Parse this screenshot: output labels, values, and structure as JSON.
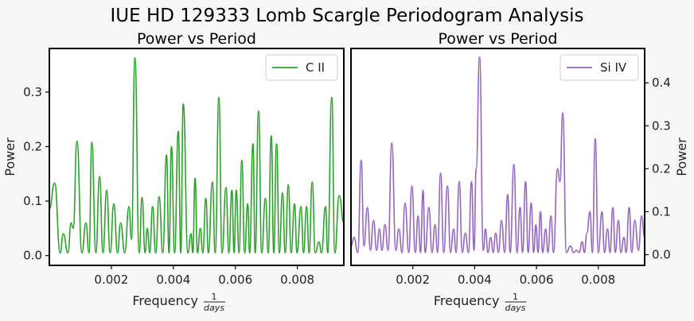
{
  "figure": {
    "title": "IUE HD 129333 Lomb Scargle Periodogram Analysis"
  },
  "chart_data": [
    {
      "type": "line",
      "title": "Power vs Period",
      "xlabel": "Frequency",
      "xlabel_fraction": {
        "numerator": "1",
        "denominator": "days"
      },
      "ylabel": "Power",
      "xlim": [
        0.0,
        0.0095
      ],
      "ylim": [
        -0.018,
        0.38
      ],
      "x_ticks": [
        "0.002",
        "0.004",
        "0.006",
        "0.008"
      ],
      "y_ticks": [
        "0.0",
        "0.1",
        "0.2",
        "0.3"
      ],
      "yaxis_side": "left",
      "legend_position": "upper right",
      "series": [
        {
          "name": "C II",
          "color": "#2ca02c",
          "peaks": [
            [
              0.0,
              0.085
            ],
            [
              0.00017,
              0.133
            ],
            [
              0.00035,
              0.005
            ],
            [
              0.00045,
              0.04
            ],
            [
              0.0006,
              0.005
            ],
            [
              0.0007,
              0.06
            ],
            [
              0.00077,
              0.05
            ],
            [
              0.00089,
              0.21
            ],
            [
              0.00105,
              0.005
            ],
            [
              0.00118,
              0.06
            ],
            [
              0.00128,
              0.005
            ],
            [
              0.00137,
              0.208
            ],
            [
              0.0015,
              0.005
            ],
            [
              0.00162,
              0.145
            ],
            [
              0.00173,
              0.005
            ],
            [
              0.00185,
              0.12
            ],
            [
              0.00196,
              0.005
            ],
            [
              0.00208,
              0.095
            ],
            [
              0.0022,
              0.005
            ],
            [
              0.0023,
              0.06
            ],
            [
              0.00243,
              0.005
            ],
            [
              0.00257,
              0.09
            ],
            [
              0.00265,
              0.03
            ],
            [
              0.00276,
              0.363
            ],
            [
              0.0029,
              0.005
            ],
            [
              0.00299,
              0.107
            ],
            [
              0.00309,
              0.005
            ],
            [
              0.00316,
              0.05
            ],
            [
              0.00324,
              0.005
            ],
            [
              0.00333,
              0.09
            ],
            [
              0.00343,
              0.005
            ],
            [
              0.00354,
              0.108
            ],
            [
              0.00366,
              0.005
            ],
            [
              0.00378,
              0.185
            ],
            [
              0.00386,
              0.005
            ],
            [
              0.00394,
              0.2
            ],
            [
              0.00404,
              0.005
            ],
            [
              0.00416,
              0.228
            ],
            [
              0.00424,
              0.005
            ],
            [
              0.00432,
              0.278
            ],
            [
              0.00447,
              0.005
            ],
            [
              0.00457,
              0.04
            ],
            [
              0.00463,
              0.005
            ],
            [
              0.0047,
              0.142
            ],
            [
              0.00478,
              0.005
            ],
            [
              0.00487,
              0.05
            ],
            [
              0.00495,
              0.005
            ],
            [
              0.00505,
              0.105
            ],
            [
              0.00513,
              0.005
            ],
            [
              0.00526,
              0.135
            ],
            [
              0.00535,
              0.005
            ],
            [
              0.00547,
              0.29
            ],
            [
              0.00557,
              0.005
            ],
            [
              0.0057,
              0.125
            ],
            [
              0.00579,
              0.005
            ],
            [
              0.00589,
              0.12
            ],
            [
              0.00596,
              0.005
            ],
            [
              0.00603,
              0.12
            ],
            [
              0.00612,
              0.005
            ],
            [
              0.00621,
              0.175
            ],
            [
              0.0063,
              0.005
            ],
            [
              0.0064,
              0.095
            ],
            [
              0.00646,
              0.005
            ],
            [
              0.00657,
              0.205
            ],
            [
              0.00664,
              0.005
            ],
            [
              0.00675,
              0.265
            ],
            [
              0.00685,
              0.005
            ],
            [
              0.00697,
              0.105
            ],
            [
              0.00706,
              0.005
            ],
            [
              0.00716,
              0.22
            ],
            [
              0.00724,
              0.005
            ],
            [
              0.00733,
              0.205
            ],
            [
              0.00742,
              0.005
            ],
            [
              0.00752,
              0.115
            ],
            [
              0.00761,
              0.005
            ],
            [
              0.00771,
              0.13
            ],
            [
              0.0078,
              0.005
            ],
            [
              0.00791,
              0.095
            ],
            [
              0.00799,
              0.005
            ],
            [
              0.00812,
              0.09
            ],
            [
              0.0082,
              0.005
            ],
            [
              0.0083,
              0.09
            ],
            [
              0.00838,
              0.005
            ],
            [
              0.00848,
              0.135
            ],
            [
              0.00858,
              0.005
            ],
            [
              0.0087,
              0.025
            ],
            [
              0.00878,
              0.005
            ],
            [
              0.00891,
              0.09
            ],
            [
              0.00898,
              0.005
            ],
            [
              0.00911,
              0.29
            ],
            [
              0.00921,
              0.005
            ],
            [
              0.00935,
              0.11
            ],
            [
              0.0095,
              0.06
            ]
          ]
        }
      ]
    },
    {
      "type": "line",
      "title": "Power vs Period",
      "xlabel": "Frequency",
      "xlabel_fraction": {
        "numerator": "1",
        "denominator": "days"
      },
      "ylabel": "Power",
      "xlim": [
        0.0,
        0.0095
      ],
      "ylim": [
        -0.025,
        0.48
      ],
      "x_ticks": [
        "0.002",
        "0.004",
        "0.006",
        "0.008"
      ],
      "y_ticks": [
        "0.0",
        "0.1",
        "0.2",
        "0.3",
        "0.4"
      ],
      "yaxis_side": "right",
      "legend_position": "upper right",
      "series": [
        {
          "name": "Si IV",
          "color": "#9467bd",
          "peaks": [
            [
              0.0,
              0.02
            ],
            [
              0.0001,
              0.04
            ],
            [
              0.00022,
              0.005
            ],
            [
              0.00033,
              0.22
            ],
            [
              0.00042,
              0.02
            ],
            [
              0.00053,
              0.11
            ],
            [
              0.00063,
              0.01
            ],
            [
              0.00073,
              0.08
            ],
            [
              0.00083,
              0.01
            ],
            [
              0.00092,
              0.06
            ],
            [
              0.001,
              0.01
            ],
            [
              0.0011,
              0.07
            ],
            [
              0.0012,
              0.01
            ],
            [
              0.00132,
              0.26
            ],
            [
              0.00145,
              0.01
            ],
            [
              0.00155,
              0.06
            ],
            [
              0.00165,
              0.005
            ],
            [
              0.00175,
              0.12
            ],
            [
              0.00187,
              0.005
            ],
            [
              0.00197,
              0.16
            ],
            [
              0.00208,
              0.005
            ],
            [
              0.00217,
              0.09
            ],
            [
              0.00225,
              0.005
            ],
            [
              0.00233,
              0.15
            ],
            [
              0.0024,
              0.005
            ],
            [
              0.00252,
              0.11
            ],
            [
              0.00262,
              0.005
            ],
            [
              0.00272,
              0.07
            ],
            [
              0.0028,
              0.005
            ],
            [
              0.0029,
              0.19
            ],
            [
              0.003,
              0.005
            ],
            [
              0.00312,
              0.16
            ],
            [
              0.00322,
              0.005
            ],
            [
              0.00332,
              0.06
            ],
            [
              0.0034,
              0.005
            ],
            [
              0.0035,
              0.17
            ],
            [
              0.0036,
              0.005
            ],
            [
              0.0037,
              0.05
            ],
            [
              0.0038,
              0.005
            ],
            [
              0.0039,
              0.17
            ],
            [
              0.00398,
              0.01
            ],
            [
              0.00405,
              0.2
            ],
            [
              0.00416,
              0.46
            ],
            [
              0.00428,
              0.01
            ],
            [
              0.00435,
              0.06
            ],
            [
              0.00443,
              0.005
            ],
            [
              0.00452,
              0.04
            ],
            [
              0.0046,
              0.005
            ],
            [
              0.00468,
              0.05
            ],
            [
              0.00477,
              0.005
            ],
            [
              0.00487,
              0.08
            ],
            [
              0.00497,
              0.005
            ],
            [
              0.00507,
              0.14
            ],
            [
              0.00515,
              0.005
            ],
            [
              0.00527,
              0.21
            ],
            [
              0.00537,
              0.005
            ],
            [
              0.00547,
              0.11
            ],
            [
              0.00555,
              0.005
            ],
            [
              0.00565,
              0.17
            ],
            [
              0.00573,
              0.005
            ],
            [
              0.00583,
              0.12
            ],
            [
              0.00591,
              0.005
            ],
            [
              0.00598,
              0.07
            ],
            [
              0.00605,
              0.005
            ],
            [
              0.00613,
              0.1
            ],
            [
              0.0062,
              0.005
            ],
            [
              0.0063,
              0.06
            ],
            [
              0.00637,
              0.005
            ],
            [
              0.00647,
              0.09
            ],
            [
              0.00655,
              0.005
            ],
            [
              0.00668,
              0.2
            ],
            [
              0.00676,
              0.17
            ],
            [
              0.00685,
              0.33
            ],
            [
              0.00697,
              0.005
            ],
            [
              0.0071,
              0.02
            ],
            [
              0.0072,
              0.005
            ],
            [
              0.0073,
              0.01
            ],
            [
              0.00738,
              0.005
            ],
            [
              0.00748,
              0.03
            ],
            [
              0.00755,
              0.005
            ],
            [
              0.00763,
              0.05
            ],
            [
              0.00773,
              0.1
            ],
            [
              0.00781,
              0.005
            ],
            [
              0.0079,
              0.27
            ],
            [
              0.008,
              0.005
            ],
            [
              0.00812,
              0.1
            ],
            [
              0.0082,
              0.005
            ],
            [
              0.0083,
              0.06
            ],
            [
              0.00838,
              0.005
            ],
            [
              0.00847,
              0.11
            ],
            [
              0.00855,
              0.005
            ],
            [
              0.00865,
              0.08
            ],
            [
              0.00873,
              0.005
            ],
            [
              0.00883,
              0.04
            ],
            [
              0.0089,
              0.005
            ],
            [
              0.009,
              0.11
            ],
            [
              0.00908,
              0.005
            ],
            [
              0.00918,
              0.08
            ],
            [
              0.0093,
              0.01
            ],
            [
              0.0094,
              0.09
            ],
            [
              0.0095,
              0.04
            ]
          ]
        }
      ]
    }
  ]
}
